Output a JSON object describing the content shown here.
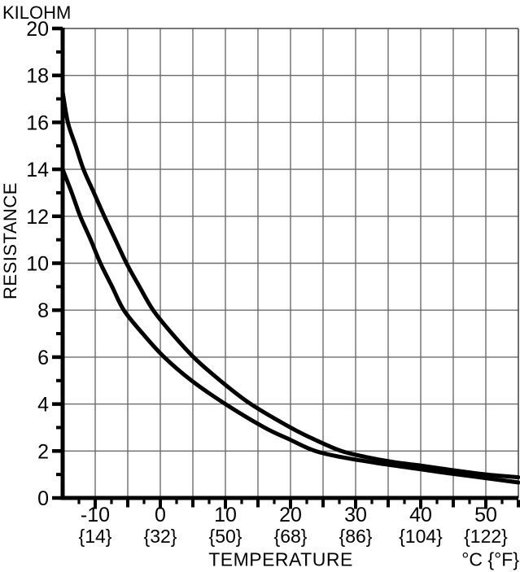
{
  "chart_data": {
    "type": "line",
    "title": "",
    "y_unit_label": "KILOHM",
    "ylabel": "RESISTANCE",
    "xlabel": "TEMPERATURE",
    "x_unit_label": "°C {°F}",
    "xlim": [
      -15,
      55
    ],
    "ylim": [
      0,
      20
    ],
    "grid": true,
    "x_grid_step_c": 5,
    "x_minor_tick_step_c": 2.5,
    "y_grid_step_kilohm": 2,
    "y_minor_tick_step_kilohm": 1,
    "x_ticks": [
      {
        "t": -10,
        "c": "-10",
        "f": "{14}"
      },
      {
        "t": 0,
        "c": "0",
        "f": "{32}"
      },
      {
        "t": 10,
        "c": "10",
        "f": "{50}"
      },
      {
        "t": 20,
        "c": "20",
        "f": "{68}"
      },
      {
        "t": 30,
        "c": "30",
        "f": "{86}"
      },
      {
        "t": 40,
        "c": "40",
        "f": "{104}"
      },
      {
        "t": 50,
        "c": "50",
        "f": "{122}"
      }
    ],
    "y_ticks": [
      {
        "v": 0,
        "label": "0"
      },
      {
        "v": 2,
        "label": "2"
      },
      {
        "v": 4,
        "label": "4"
      },
      {
        "v": 6,
        "label": "6"
      },
      {
        "v": 8,
        "label": "8"
      },
      {
        "v": 10,
        "label": "10"
      },
      {
        "v": 12,
        "label": "12"
      },
      {
        "v": 14,
        "label": "14"
      },
      {
        "v": 16,
        "label": "16"
      },
      {
        "v": 18,
        "label": "18"
      },
      {
        "v": 20,
        "label": "20"
      }
    ],
    "series": [
      {
        "name": "upper resistance curve",
        "points": [
          [
            -15,
            17.3
          ],
          [
            -14.2,
            16
          ],
          [
            -13,
            15
          ],
          [
            -11.8,
            14
          ],
          [
            -10.2,
            13
          ],
          [
            -8.6,
            12
          ],
          [
            -6.9,
            11
          ],
          [
            -5.2,
            10
          ],
          [
            -3.2,
            9
          ],
          [
            -1.1,
            8
          ],
          [
            1.8,
            7
          ],
          [
            5.1,
            6
          ],
          [
            9.2,
            5
          ],
          [
            13.9,
            4
          ],
          [
            20,
            3
          ],
          [
            23.6,
            2.5
          ],
          [
            27.8,
            2
          ],
          [
            31.5,
            1.75
          ],
          [
            36,
            1.52
          ],
          [
            40,
            1.38
          ],
          [
            45,
            1.18
          ],
          [
            50,
            1.0
          ],
          [
            55,
            0.88
          ]
        ]
      },
      {
        "name": "lower resistance curve",
        "points": [
          [
            -15,
            14
          ],
          [
            -13.6,
            13
          ],
          [
            -12.3,
            12
          ],
          [
            -10.7,
            11
          ],
          [
            -9.2,
            10
          ],
          [
            -7.4,
            9
          ],
          [
            -5.6,
            8
          ],
          [
            -2.7,
            7
          ],
          [
            0.6,
            6
          ],
          [
            4.8,
            5
          ],
          [
            10,
            4
          ],
          [
            16,
            3
          ],
          [
            19.8,
            2.5
          ],
          [
            23.8,
            2
          ],
          [
            28,
            1.73
          ],
          [
            33,
            1.5
          ],
          [
            38,
            1.3
          ],
          [
            43,
            1.1
          ],
          [
            48,
            0.92
          ],
          [
            55,
            0.66
          ]
        ]
      }
    ],
    "colors": {
      "curve": "#000000",
      "grid": "#6b6b6b",
      "border": "#4a4a4a",
      "axis": "#000000",
      "background": "#ffffff",
      "text": "#000000"
    }
  }
}
